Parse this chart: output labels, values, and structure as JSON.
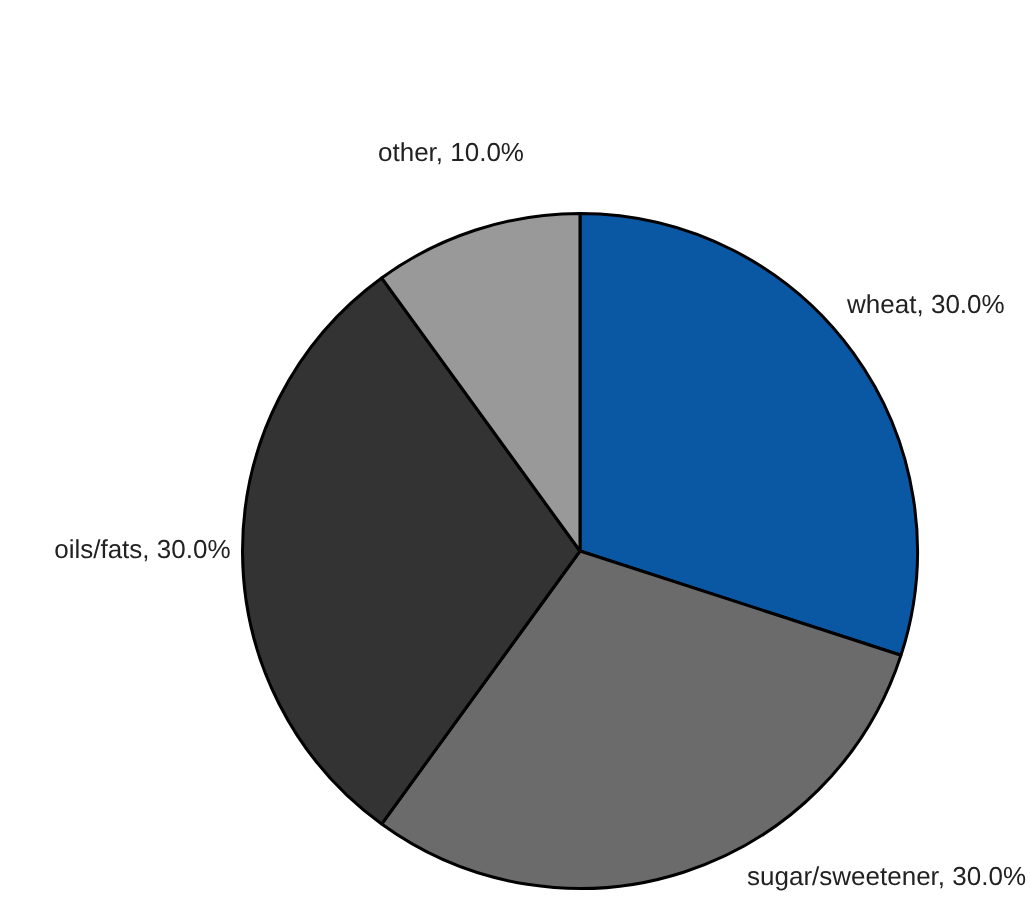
{
  "chart_data": {
    "type": "pie",
    "categories": [
      "wheat",
      "sugar/sweetener",
      "oils/fats",
      "other"
    ],
    "values": [
      30,
      30,
      30,
      10
    ],
    "colors": [
      "#0a58a3",
      "#6b6b6b",
      "#333333",
      "#999999"
    ],
    "value_labels": [
      "30.0%",
      "30.0%",
      "30.0%",
      "10.0%"
    ]
  }
}
